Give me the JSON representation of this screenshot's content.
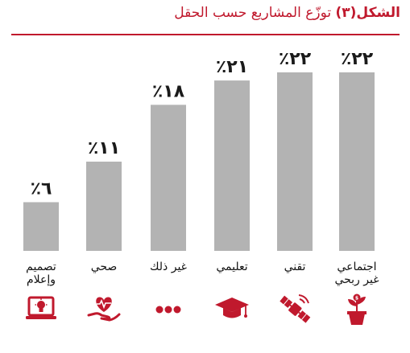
{
  "title": {
    "lead": "الشكل(٣)",
    "rest": " توزّع  المشاريع حسب الحقل"
  },
  "colors": {
    "bar": "#b3b3b3",
    "accent": "#c0192d",
    "value_text": "#1a1a1a"
  },
  "chart_data": {
    "type": "bar",
    "title": "الشكل(٣) توزّع  المشاريع حسب الحقل",
    "categories": [
      "تصميم وإعلام",
      "صحي",
      "غير ذلك",
      "تعليمي",
      "تقني",
      "اجتماعي غير ربحي"
    ],
    "category_lines": [
      [
        "تصميم",
        "وإعلام"
      ],
      [
        "صحي"
      ],
      [
        "غير ذلك"
      ],
      [
        "تعليمي"
      ],
      [
        "تقني"
      ],
      [
        "اجتماعي",
        "غير ربحي"
      ]
    ],
    "values": [
      6,
      11,
      18,
      21,
      22,
      22
    ],
    "value_labels": [
      "٪٦",
      "٪١١",
      "٪١٨",
      "٪٢١",
      "٪٢٢",
      "٪٢٢"
    ],
    "unit": "%",
    "ylim": [
      0,
      22
    ],
    "icons": [
      "laptop-lightbulb-icon",
      "hand-heart-icon",
      "three-dots-icon",
      "graduation-cap-icon",
      "satellite-icon",
      "plant-pot-icon"
    ],
    "grid": false,
    "legend": "none"
  }
}
